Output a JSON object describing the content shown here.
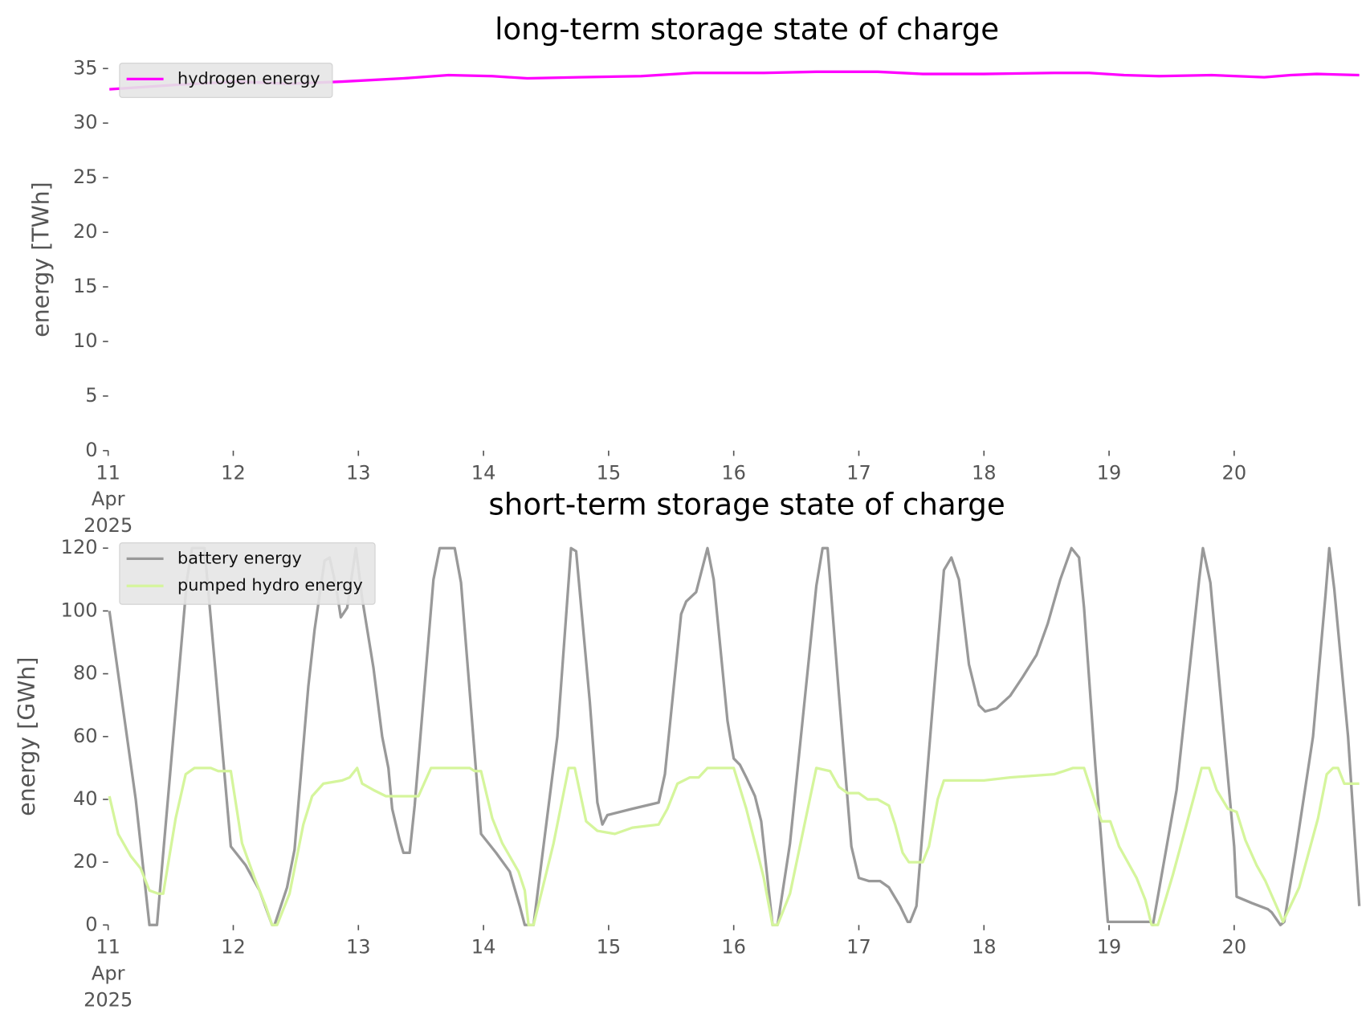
{
  "chart_data": [
    {
      "type": "line",
      "title": "long-term storage state of charge",
      "ylabel": "energy [TWh]",
      "xlim": [
        11,
        21
      ],
      "xticks": [
        {
          "value": 11,
          "label": "11\nApr\n2025"
        },
        12,
        13,
        14,
        15,
        16,
        17,
        18,
        19,
        20
      ],
      "ylim": [
        0,
        35
      ],
      "yticks": [
        0,
        5,
        10,
        15,
        20,
        25,
        30,
        35
      ],
      "grid": false,
      "legend": "upper left",
      "series": [
        {
          "name": "hydrogen energy",
          "color": "#ff00ff",
          "x": [
            11.01,
            11.54,
            12.03,
            12.45,
            12.87,
            13.36,
            13.72,
            14.07,
            14.35,
            14.77,
            15.26,
            15.68,
            16.24,
            16.66,
            17.15,
            17.51,
            18.0,
            18.56,
            18.84,
            19.12,
            19.4,
            19.82,
            20.24,
            20.45,
            20.66,
            21.0
          ],
          "values": [
            33.1,
            33.5,
            33.8,
            33.6,
            33.8,
            34.1,
            34.4,
            34.3,
            34.1,
            34.2,
            34.3,
            34.6,
            34.6,
            34.7,
            34.7,
            34.5,
            34.5,
            34.6,
            34.6,
            34.4,
            34.3,
            34.4,
            34.2,
            34.4,
            34.5,
            34.4
          ]
        }
      ]
    },
    {
      "type": "line",
      "title": "short-term storage state of charge",
      "ylabel": "energy [GWh]",
      "xlim": [
        11,
        21
      ],
      "xticks": [
        {
          "value": 11,
          "label": "11\nApr\n2025"
        },
        12,
        13,
        14,
        15,
        16,
        17,
        18,
        19,
        20
      ],
      "ylim": [
        0,
        120
      ],
      "yticks": [
        0,
        20,
        40,
        60,
        80,
        100,
        120
      ],
      "grid": false,
      "legend": "upper left",
      "series": [
        {
          "name": "battery energy",
          "color": "#999999",
          "x": [
            11.01,
            11.22,
            11.33,
            11.39,
            11.63,
            11.67,
            11.77,
            11.86,
            11.98,
            12.1,
            12.21,
            12.31,
            12.33,
            12.43,
            12.49,
            12.6,
            12.65,
            12.73,
            12.77,
            12.82,
            12.86,
            12.91,
            12.98,
            13.03,
            13.12,
            13.19,
            13.24,
            13.27,
            13.33,
            13.36,
            13.41,
            13.45,
            13.6,
            13.65,
            13.77,
            13.82,
            13.98,
            14.1,
            14.21,
            14.29,
            14.33,
            14.4,
            14.59,
            14.7,
            14.74,
            14.85,
            14.91,
            14.95,
            14.99,
            15.19,
            15.4,
            15.45,
            15.58,
            15.62,
            15.7,
            15.79,
            15.84,
            15.95,
            16.0,
            16.05,
            16.1,
            16.17,
            16.22,
            16.31,
            16.35,
            16.45,
            16.66,
            16.71,
            16.75,
            16.84,
            16.94,
            17.0,
            17.08,
            17.17,
            17.24,
            17.33,
            17.39,
            17.41,
            17.46,
            17.56,
            17.68,
            17.74,
            17.8,
            17.88,
            17.96,
            18.01,
            18.1,
            18.21,
            18.31,
            18.42,
            18.51,
            18.61,
            18.7,
            18.76,
            18.8,
            18.89,
            18.99,
            19.33,
            19.35,
            19.54,
            19.72,
            19.75,
            19.81,
            20.0,
            20.02,
            20.14,
            20.27,
            20.3,
            20.37,
            20.4,
            20.49,
            20.63,
            20.73,
            20.76,
            20.8,
            20.91,
            21.0
          ],
          "values": [
            100,
            40,
            0,
            0,
            110,
            120,
            120,
            80,
            25,
            19,
            11,
            0,
            0,
            12,
            24,
            76,
            94,
            116,
            117,
            108,
            98,
            101,
            120,
            104,
            82,
            60,
            50,
            37,
            27,
            23,
            23,
            38,
            110,
            120,
            120,
            109,
            29,
            23,
            17,
            6,
            0,
            0,
            60,
            120,
            119,
            71,
            39,
            32,
            35,
            37,
            39,
            48,
            99,
            103,
            106,
            120,
            110,
            65,
            53,
            51,
            47,
            41,
            33,
            0,
            0,
            26,
            108,
            120,
            120,
            74,
            25,
            15,
            14,
            14,
            12,
            6,
            1,
            1,
            6,
            55,
            113,
            117,
            110,
            83,
            70,
            68,
            69,
            73,
            79,
            86,
            96,
            110,
            120,
            117,
            101,
            51,
            1,
            1,
            0,
            43,
            110,
            120,
            109,
            25,
            9,
            7,
            5,
            4,
            0,
            1,
            23,
            60,
            105,
            120,
            107,
            60,
            6
          ]
        },
        {
          "name": "pumped hydro energy",
          "color": "#d5f59c",
          "x": [
            11.01,
            11.08,
            11.18,
            11.26,
            11.33,
            11.4,
            11.44,
            11.54,
            11.62,
            11.69,
            11.82,
            11.88,
            11.98,
            12.07,
            12.17,
            12.26,
            12.31,
            12.35,
            12.45,
            12.56,
            12.63,
            12.72,
            12.87,
            12.93,
            12.99,
            13.03,
            13.12,
            13.22,
            13.35,
            13.48,
            13.58,
            13.89,
            13.93,
            13.98,
            14.07,
            14.15,
            14.28,
            14.33,
            14.36,
            14.4,
            14.56,
            14.68,
            14.73,
            14.82,
            14.91,
            15.05,
            15.19,
            15.4,
            15.47,
            15.55,
            15.65,
            15.72,
            15.79,
            16.0,
            16.1,
            16.19,
            16.24,
            16.31,
            16.35,
            16.45,
            16.66,
            16.77,
            16.84,
            16.91,
            17.0,
            17.07,
            17.15,
            17.24,
            17.29,
            17.35,
            17.4,
            17.51,
            17.56,
            17.63,
            17.68,
            18.0,
            18.21,
            18.56,
            18.64,
            18.71,
            18.8,
            18.89,
            18.94,
            19.01,
            19.08,
            19.22,
            19.29,
            19.34,
            19.39,
            19.51,
            19.68,
            19.74,
            19.8,
            19.86,
            19.95,
            20.02,
            20.09,
            20.18,
            20.25,
            20.36,
            20.39,
            20.52,
            20.67,
            20.74,
            20.79,
            20.83,
            20.88,
            20.95,
            21.0
          ],
          "values": [
            41,
            29,
            22,
            18,
            11,
            10,
            10,
            34,
            48,
            50,
            50,
            49,
            49,
            26,
            15,
            6,
            0,
            0,
            10,
            32,
            41,
            45,
            46,
            47,
            50,
            45,
            43,
            41,
            41,
            41,
            50,
            50,
            49,
            49,
            34,
            26,
            17,
            11,
            0,
            0,
            26,
            50,
            50,
            33,
            30,
            29,
            31,
            32,
            37,
            45,
            47,
            47,
            50,
            50,
            37,
            23,
            15,
            0,
            0,
            10,
            50,
            49,
            44,
            42,
            42,
            40,
            40,
            38,
            32,
            23,
            20,
            20,
            25,
            40,
            46,
            46,
            47,
            48,
            49,
            50,
            50,
            39,
            33,
            33,
            25,
            15,
            8,
            0,
            0,
            16,
            41,
            50,
            50,
            43,
            37,
            36,
            27,
            19,
            14,
            4,
            1,
            12,
            34,
            48,
            50,
            50,
            45,
            45,
            45
          ]
        }
      ]
    }
  ]
}
